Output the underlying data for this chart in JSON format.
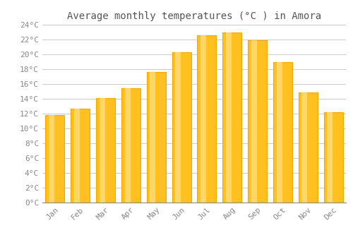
{
  "title": "Average monthly temperatures (°C ) in Amora",
  "months": [
    "Jan",
    "Feb",
    "Mar",
    "Apr",
    "May",
    "Jun",
    "Jul",
    "Aug",
    "Sep",
    "Oct",
    "Nov",
    "Dec"
  ],
  "values": [
    11.8,
    12.7,
    14.1,
    15.4,
    17.6,
    20.3,
    22.6,
    23.0,
    21.9,
    19.0,
    14.9,
    12.2
  ],
  "bar_color_face": "#FFC020",
  "bar_color_edge": "#F5A800",
  "bar_gradient_top": "#FFE080",
  "ylim": [
    0,
    24
  ],
  "ytick_step": 2,
  "background_color": "#FFFFFF",
  "grid_color": "#CCCCCC",
  "title_fontsize": 10,
  "tick_fontsize": 8,
  "font_family": "monospace"
}
